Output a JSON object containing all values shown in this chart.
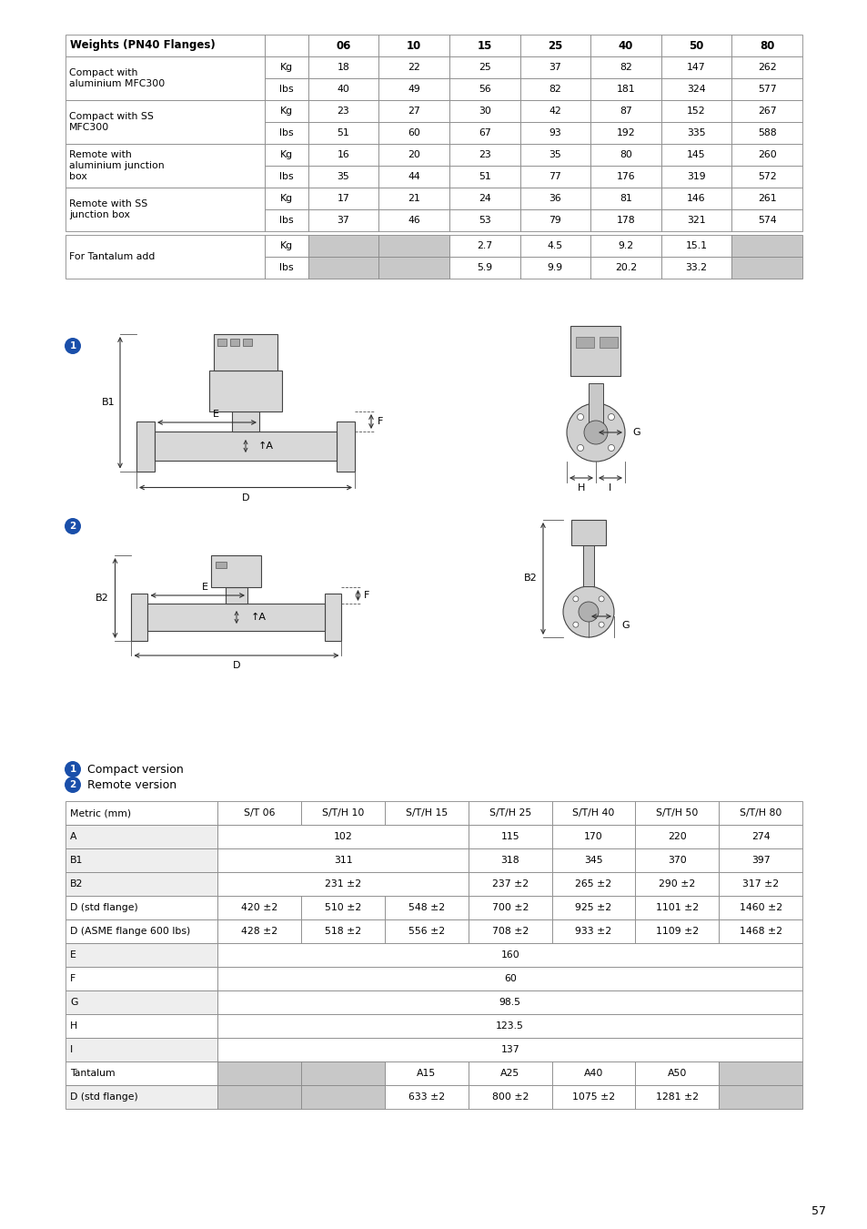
{
  "page_bg": "#ffffff",
  "page_number": "57",
  "table1": {
    "col_widths_rel": [
      175,
      38,
      62,
      62,
      62,
      62,
      62,
      62,
      62
    ],
    "headers": [
      "Weights (PN40 Flanges)",
      "",
      "06",
      "10",
      "15",
      "25",
      "40",
      "50",
      "80"
    ],
    "row_groups": [
      {
        "label": "Compact with\naluminium MFC300",
        "rows": [
          [
            "Kg",
            "18",
            "22",
            "25",
            "37",
            "82",
            "147",
            "262"
          ],
          [
            "lbs",
            "40",
            "49",
            "56",
            "82",
            "181",
            "324",
            "577"
          ]
        ]
      },
      {
        "label": "Compact with SS\nMFC300",
        "rows": [
          [
            "Kg",
            "23",
            "27",
            "30",
            "42",
            "87",
            "152",
            "267"
          ],
          [
            "lbs",
            "51",
            "60",
            "67",
            "93",
            "192",
            "335",
            "588"
          ]
        ]
      },
      {
        "label": "Remote with\naluminium junction\nbox",
        "rows": [
          [
            "Kg",
            "16",
            "20",
            "23",
            "35",
            "80",
            "145",
            "260"
          ],
          [
            "lbs",
            "35",
            "44",
            "51",
            "77",
            "176",
            "319",
            "572"
          ]
        ]
      },
      {
        "label": "Remote with SS\njunction box",
        "rows": [
          [
            "Kg",
            "17",
            "21",
            "24",
            "36",
            "81",
            "146",
            "261"
          ],
          [
            "lbs",
            "37",
            "46",
            "53",
            "79",
            "178",
            "321",
            "574"
          ]
        ]
      },
      {
        "label": "For Tantalum add",
        "rows": [
          [
            "Kg",
            "GRAY",
            "GRAY",
            "2.7",
            "4.5",
            "9.2",
            "15.1",
            "GRAY"
          ],
          [
            "lbs",
            "GRAY",
            "GRAY",
            "5.9",
            "9.9",
            "20.2",
            "33.2",
            "GRAY"
          ]
        ]
      }
    ]
  },
  "table2": {
    "col_widths_rel": [
      155,
      85,
      85,
      85,
      85,
      85,
      85,
      85
    ],
    "headers": [
      "Metric (mm)",
      "S/T 06",
      "S/T/H 10",
      "S/T/H 15",
      "S/T/H 25",
      "S/T/H 40",
      "S/T/H 50",
      "S/T/H 80"
    ],
    "rows": [
      {
        "label": "A",
        "bg": "light",
        "cells": [
          [
            "MERGE3",
            "102"
          ],
          "115",
          "170",
          "220",
          "274"
        ]
      },
      {
        "label": "B1",
        "bg": "light",
        "cells": [
          [
            "MERGE3",
            "311"
          ],
          "318",
          "345",
          "370",
          "397"
        ]
      },
      {
        "label": "B2",
        "bg": "light",
        "cells": [
          [
            "MERGE3",
            "231 ±2"
          ],
          "237 ±2",
          "265 ±2",
          "290 ±2",
          "317 ±2"
        ]
      },
      {
        "label": "D (std flange)",
        "bg": "white",
        "cells": [
          "420 ±2",
          "510 ±2",
          "548 ±2",
          "700 ±2",
          "925 ±2",
          "1101 ±2",
          "1460 ±2"
        ]
      },
      {
        "label": "D (ASME flange 600 lbs)",
        "bg": "white",
        "cells": [
          "428 ±2",
          "518 ±2",
          "556 ±2",
          "708 ±2",
          "933 ±2",
          "1109 ±2",
          "1468 ±2"
        ]
      },
      {
        "label": "E",
        "bg": "light",
        "cells": [
          [
            "SPANALL",
            "160"
          ]
        ]
      },
      {
        "label": "F",
        "bg": "white",
        "cells": [
          [
            "SPANALL",
            "60"
          ]
        ]
      },
      {
        "label": "G",
        "bg": "light",
        "cells": [
          [
            "SPANALL",
            "98.5"
          ]
        ]
      },
      {
        "label": "H",
        "bg": "white",
        "cells": [
          [
            "SPANALL",
            "123.5"
          ]
        ]
      },
      {
        "label": "I",
        "bg": "light",
        "cells": [
          [
            "SPANALL",
            "137"
          ]
        ]
      },
      {
        "label": "Tantalum",
        "bg": "white",
        "cells": [
          "GRAY",
          "GRAY",
          "A15",
          "A25",
          "A40",
          "A50",
          "GRAY"
        ]
      },
      {
        "label": "D (std flange)",
        "bg": "light",
        "cells": [
          "GRAY",
          "GRAY",
          "633 ±2",
          "800 ±2",
          "1075 ±2",
          "1281 ±2",
          "GRAY"
        ]
      }
    ]
  },
  "gray_color": "#c8c8c8",
  "light_row_bg": "#eeeeee",
  "white_row_bg": "#ffffff",
  "border_color": "#888888",
  "text_color": "#000000"
}
